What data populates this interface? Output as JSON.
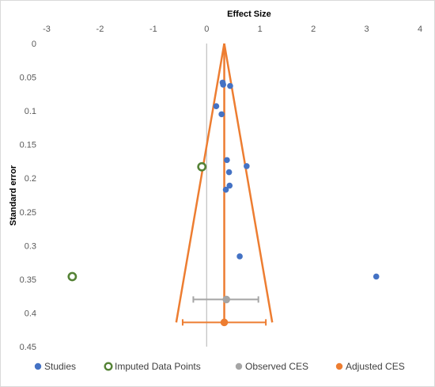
{
  "chart_data": {
    "type": "scatter",
    "xlabel": "Effect Size",
    "ylabel": "Standard error",
    "xlim": [
      -3,
      4
    ],
    "ylim": [
      0,
      0.45
    ],
    "y_reversed": true,
    "x_ticks": [
      "-3",
      "-2",
      "-1",
      "0",
      "1",
      "2",
      "3",
      "4"
    ],
    "y_ticks": [
      "0",
      "0.05",
      "0.1",
      "0.15",
      "0.2",
      "0.25",
      "0.3",
      "0.35",
      "0.4",
      "0.45"
    ],
    "x_tick_values": [
      -3,
      -2,
      -1,
      0,
      1,
      2,
      3,
      4
    ],
    "y_tick_values": [
      0,
      0.05,
      0.1,
      0.15,
      0.2,
      0.25,
      0.3,
      0.35,
      0.4,
      0.45
    ],
    "legend_position": "bottom",
    "series": [
      {
        "name": "Studies",
        "color": "#4472C4",
        "marker": "filled-circle",
        "points": [
          {
            "x": 0.3,
            "y": 0.058
          },
          {
            "x": 0.31,
            "y": 0.061
          },
          {
            "x": 0.44,
            "y": 0.063
          },
          {
            "x": 0.18,
            "y": 0.093
          },
          {
            "x": 0.28,
            "y": 0.105
          },
          {
            "x": 0.38,
            "y": 0.173
          },
          {
            "x": 0.75,
            "y": 0.182
          },
          {
            "x": 0.42,
            "y": 0.191
          },
          {
            "x": 0.43,
            "y": 0.211
          },
          {
            "x": 0.36,
            "y": 0.217
          },
          {
            "x": 0.62,
            "y": 0.316
          },
          {
            "x": 3.18,
            "y": 0.346
          }
        ]
      },
      {
        "name": "Imputed Data Points",
        "color": "#548235",
        "marker": "open-circle",
        "points": [
          {
            "x": -0.09,
            "y": 0.183
          },
          {
            "x": -2.52,
            "y": 0.346
          }
        ]
      },
      {
        "name": "Observed CES",
        "color": "#A5A5A5",
        "marker": "filled-circle",
        "points": [
          {
            "x": 0.37,
            "y": 0.38
          }
        ],
        "ci": [
          -0.25,
          0.97
        ]
      },
      {
        "name": "Adjusted CES",
        "color": "#ED7D31",
        "marker": "filled-circle",
        "points": [
          {
            "x": 0.33,
            "y": 0.414
          }
        ],
        "ci": [
          -0.45,
          1.11
        ]
      }
    ],
    "funnel": {
      "color": "#ED7D31",
      "apex": {
        "x": 0.33,
        "y": 0
      },
      "base_left": {
        "x": -0.57,
        "y": 0.414
      },
      "base_right": {
        "x": 1.23,
        "y": 0.414
      },
      "center_x": 0.33
    },
    "zero_line": {
      "x": 0,
      "color": "#BFBFBF"
    }
  }
}
